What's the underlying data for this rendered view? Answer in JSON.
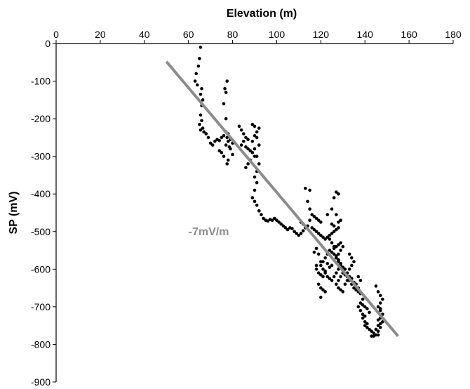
{
  "chart_data": {
    "type": "scatter",
    "title": "",
    "xlabel": "Elevation (m)",
    "ylabel": "SP (mV)",
    "xlim": [
      0,
      180
    ],
    "ylim": [
      -900,
      0
    ],
    "x_ticks": [
      "0",
      "20",
      "40",
      "60",
      "80",
      "100",
      "120",
      "140",
      "160",
      "180"
    ],
    "y_ticks": [
      "0",
      "-100",
      "-200",
      "-300",
      "-400",
      "-500",
      "-600",
      "-700",
      "-800",
      "-900"
    ],
    "x_axis_position": "top",
    "grid": false,
    "legend": "none",
    "point_color": "#000000",
    "trend_color": "#8c8c8c",
    "series": [
      {
        "points": [
          [
            65.5,
            -10
          ],
          [
            65,
            -40
          ],
          [
            64.5,
            -60
          ],
          [
            63.5,
            -80
          ],
          [
            63,
            -100
          ],
          [
            64,
            -110
          ],
          [
            66,
            -120
          ],
          [
            65.5,
            -135
          ],
          [
            66.5,
            -150
          ],
          [
            66,
            -165
          ],
          [
            65.5,
            -190
          ],
          [
            66,
            -205
          ],
          [
            65,
            -215
          ],
          [
            66.5,
            -225
          ],
          [
            67,
            -235
          ],
          [
            65.5,
            -230
          ],
          [
            68,
            -240
          ],
          [
            69,
            -250
          ],
          [
            70,
            -265
          ],
          [
            71,
            -270
          ],
          [
            72,
            -260
          ],
          [
            73,
            -255
          ],
          [
            74,
            -258
          ],
          [
            75,
            -250
          ],
          [
            76,
            -245
          ],
          [
            77,
            -235
          ],
          [
            77.5,
            -250
          ],
          [
            78,
            -260
          ],
          [
            78.5,
            -275
          ],
          [
            77,
            -270
          ],
          [
            79,
            -280
          ],
          [
            80,
            -295
          ],
          [
            78,
            -310
          ],
          [
            77.5,
            -320
          ],
          [
            76,
            -300
          ],
          [
            75,
            -290
          ],
          [
            74,
            -285
          ],
          [
            76,
            -160
          ],
          [
            77,
            -130
          ],
          [
            77.5,
            -100
          ],
          [
            76.5,
            -120
          ],
          [
            77,
            -200
          ],
          [
            78,
            -240
          ],
          [
            79,
            -255
          ],
          [
            80,
            -265
          ],
          [
            83,
            -220
          ],
          [
            84,
            -230
          ],
          [
            85,
            -240
          ],
          [
            86,
            -250
          ],
          [
            87,
            -255
          ],
          [
            85,
            -260
          ],
          [
            84,
            -270
          ],
          [
            86,
            -275
          ],
          [
            87,
            -280
          ],
          [
            88,
            -285
          ],
          [
            89,
            -290
          ],
          [
            90,
            -300
          ],
          [
            88,
            -310
          ],
          [
            87,
            -320
          ],
          [
            86,
            -330
          ],
          [
            89,
            -260
          ],
          [
            90,
            -245
          ],
          [
            91,
            -235
          ],
          [
            92,
            -225
          ],
          [
            89,
            -215
          ],
          [
            90,
            -220
          ],
          [
            91,
            -250
          ],
          [
            92,
            -270
          ],
          [
            90,
            -280
          ],
          [
            91,
            -300
          ],
          [
            92,
            -320
          ],
          [
            91,
            -340
          ],
          [
            90,
            -355
          ],
          [
            91,
            -370
          ],
          [
            90,
            -390
          ],
          [
            89,
            -410
          ],
          [
            90,
            -420
          ],
          [
            91,
            -430
          ],
          [
            92,
            -445
          ],
          [
            93,
            -455
          ],
          [
            94,
            -465
          ],
          [
            95,
            -470
          ],
          [
            96,
            -472
          ],
          [
            97,
            -468
          ],
          [
            98,
            -470
          ],
          [
            99,
            -465
          ],
          [
            100,
            -470
          ],
          [
            101,
            -475
          ],
          [
            102,
            -480
          ],
          [
            103,
            -485
          ],
          [
            104,
            -490
          ],
          [
            105,
            -495
          ],
          [
            106,
            -490
          ],
          [
            107,
            -492
          ],
          [
            108,
            -500
          ],
          [
            109,
            -505
          ],
          [
            110,
            -510
          ],
          [
            111,
            -505
          ],
          [
            112,
            -498
          ],
          [
            113,
            -490
          ],
          [
            114,
            -485
          ],
          [
            112,
            -480
          ],
          [
            111,
            -475
          ],
          [
            115,
            -470
          ],
          [
            113,
            -385
          ],
          [
            115,
            -390
          ],
          [
            114,
            -420
          ],
          [
            115,
            -440
          ],
          [
            116,
            -455
          ],
          [
            117,
            -460
          ],
          [
            118,
            -465
          ],
          [
            119,
            -470
          ],
          [
            120,
            -475
          ],
          [
            116,
            -490
          ],
          [
            117,
            -495
          ],
          [
            118,
            -500
          ],
          [
            119,
            -505
          ],
          [
            120,
            -510
          ],
          [
            121,
            -515
          ],
          [
            122,
            -520
          ],
          [
            123,
            -515
          ],
          [
            124,
            -510
          ],
          [
            125,
            -505
          ],
          [
            126,
            -500
          ],
          [
            127,
            -495
          ],
          [
            128,
            -490
          ],
          [
            126,
            -485
          ],
          [
            125,
            -480
          ],
          [
            124,
            -520
          ],
          [
            125,
            -530
          ],
          [
            126,
            -540
          ],
          [
            124,
            -550
          ],
          [
            123,
            -560
          ],
          [
            122,
            -570
          ],
          [
            121,
            -580
          ],
          [
            120,
            -590
          ],
          [
            121,
            -600
          ],
          [
            122,
            -610
          ],
          [
            123,
            -620
          ],
          [
            124,
            -625
          ],
          [
            125,
            -630
          ],
          [
            126,
            -620
          ],
          [
            127,
            -610
          ],
          [
            128,
            -600
          ],
          [
            129,
            -590
          ],
          [
            128,
            -580
          ],
          [
            127,
            -570
          ],
          [
            126,
            -560
          ],
          [
            125,
            -555
          ],
          [
            126,
            -545
          ],
          [
            127,
            -540
          ],
          [
            128,
            -535
          ],
          [
            129,
            -530
          ],
          [
            130,
            -540
          ],
          [
            129,
            -550
          ],
          [
            128,
            -560
          ],
          [
            127,
            -565
          ],
          [
            128,
            -575
          ],
          [
            129,
            -585
          ],
          [
            130,
            -595
          ],
          [
            131,
            -600
          ],
          [
            130,
            -610
          ],
          [
            129,
            -620
          ],
          [
            128,
            -630
          ],
          [
            127,
            -640
          ],
          [
            128,
            -650
          ],
          [
            129,
            -655
          ],
          [
            130,
            -660
          ],
          [
            131,
            -640
          ],
          [
            132,
            -630
          ],
          [
            133,
            -620
          ],
          [
            132,
            -610
          ],
          [
            131,
            -615
          ],
          [
            118,
            -600
          ],
          [
            119,
            -610
          ],
          [
            120,
            -615
          ],
          [
            121,
            -620
          ],
          [
            122,
            -605
          ],
          [
            119,
            -640
          ],
          [
            120,
            -650
          ],
          [
            121,
            -655
          ],
          [
            122,
            -660
          ],
          [
            119,
            -560
          ],
          [
            120,
            -580
          ],
          [
            118,
            -590
          ],
          [
            117,
            -555
          ],
          [
            118,
            -545
          ],
          [
            120,
            -675
          ],
          [
            123,
            -585
          ],
          [
            124,
            -595
          ],
          [
            125,
            -590
          ],
          [
            127,
            -395
          ],
          [
            128,
            -400
          ],
          [
            126,
            -410
          ],
          [
            125,
            -440
          ],
          [
            127,
            -455
          ],
          [
            128,
            -475
          ],
          [
            129,
            -470
          ],
          [
            123,
            -455
          ],
          [
            133,
            -560
          ],
          [
            134,
            -570
          ],
          [
            135,
            -580
          ],
          [
            134,
            -590
          ],
          [
            133,
            -600
          ],
          [
            132,
            -620
          ],
          [
            133,
            -630
          ],
          [
            134,
            -640
          ],
          [
            135,
            -650
          ],
          [
            136,
            -655
          ],
          [
            137,
            -660
          ],
          [
            136,
            -640
          ],
          [
            135,
            -635
          ],
          [
            134,
            -625
          ],
          [
            137,
            -620
          ],
          [
            138,
            -630
          ],
          [
            137,
            -650
          ],
          [
            138,
            -665
          ],
          [
            139,
            -680
          ],
          [
            138,
            -690
          ],
          [
            137,
            -700
          ],
          [
            138,
            -710
          ],
          [
            139,
            -720
          ],
          [
            140,
            -725
          ],
          [
            139,
            -730
          ],
          [
            140,
            -740
          ],
          [
            141,
            -745
          ],
          [
            140,
            -750
          ],
          [
            141,
            -755
          ],
          [
            142,
            -760
          ],
          [
            143,
            -765
          ],
          [
            144,
            -770
          ],
          [
            145,
            -775
          ],
          [
            146,
            -775
          ],
          [
            144,
            -778
          ],
          [
            143,
            -778
          ],
          [
            145,
            -760
          ],
          [
            146,
            -750
          ],
          [
            147,
            -745
          ],
          [
            146,
            -735
          ],
          [
            147,
            -730
          ],
          [
            148,
            -720
          ],
          [
            147,
            -710
          ],
          [
            146,
            -700
          ],
          [
            147,
            -690
          ],
          [
            148,
            -680
          ],
          [
            147,
            -670
          ],
          [
            146,
            -660
          ],
          [
            145,
            -645
          ],
          [
            146,
            -765
          ],
          [
            147,
            -755
          ],
          [
            148,
            -740
          ],
          [
            147,
            -705
          ],
          [
            141,
            -705
          ],
          [
            142,
            -715
          ],
          [
            140,
            -700
          ],
          [
            139,
            -695
          ]
        ]
      }
    ],
    "trend_line": {
      "x": [
        50,
        155
      ],
      "y": [
        -48,
        -778
      ]
    },
    "annotations": [
      {
        "text": "-7mV/m",
        "x": 60,
        "y": -510
      }
    ]
  }
}
